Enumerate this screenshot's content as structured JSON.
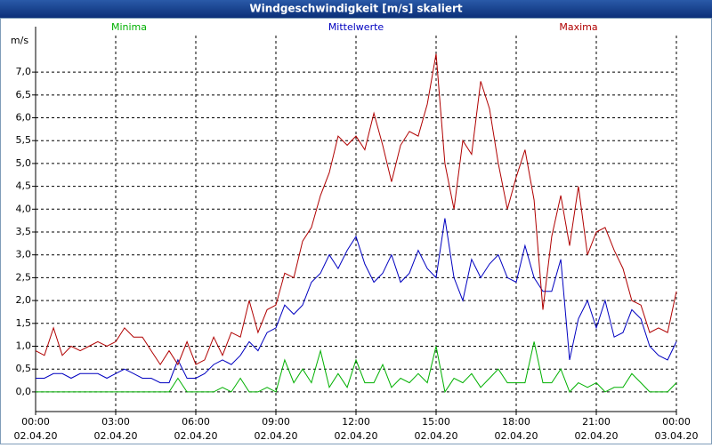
{
  "chart_data": {
    "type": "line",
    "title": "Windgeschwindigkeit [m/s] skaliert",
    "y_label": "m/s",
    "x": [
      0,
      0.33,
      0.67,
      1,
      1.33,
      1.67,
      2,
      2.33,
      2.67,
      3,
      3.33,
      3.67,
      4,
      4.33,
      4.67,
      5,
      5.33,
      5.67,
      6,
      6.33,
      6.67,
      7,
      7.33,
      7.67,
      8,
      8.33,
      8.67,
      9,
      9.33,
      9.67,
      10,
      10.33,
      10.67,
      11,
      11.33,
      11.67,
      12,
      12.33,
      12.67,
      13,
      13.33,
      13.67,
      14,
      14.33,
      14.67,
      15,
      15.33,
      15.67,
      16,
      16.33,
      16.67,
      17,
      17.33,
      17.67,
      18,
      18.33,
      18.67,
      19,
      19.33,
      19.67,
      20,
      20.33,
      20.67,
      21,
      21.33,
      21.67,
      22,
      22.33,
      22.67,
      23,
      23.33,
      23.67,
      24
    ],
    "series": [
      {
        "name": "Minima",
        "color": "#00b000",
        "values": [
          0,
          0,
          0,
          0,
          0,
          0,
          0,
          0,
          0,
          0,
          0,
          0,
          0,
          0,
          0,
          0,
          0.3,
          0,
          0,
          0,
          0,
          0.1,
          0,
          0.3,
          0,
          0,
          0.1,
          0,
          0.7,
          0.2,
          0.5,
          0.2,
          0.9,
          0.1,
          0.4,
          0.1,
          0.7,
          0.2,
          0.2,
          0.6,
          0.1,
          0.3,
          0.2,
          0.4,
          0.2,
          1.0,
          0,
          0.3,
          0.2,
          0.4,
          0.1,
          0.3,
          0.5,
          0.2,
          0.2,
          0.2,
          1.1,
          0.2,
          0.2,
          0.5,
          0,
          0.2,
          0.1,
          0.2,
          0,
          0.1,
          0.1,
          0.4,
          0.2,
          0,
          0,
          0,
          0.2
        ]
      },
      {
        "name": "Mittelwerte",
        "color": "#0000c0",
        "values": [
          0.3,
          0.3,
          0.4,
          0.4,
          0.3,
          0.4,
          0.4,
          0.4,
          0.3,
          0.4,
          0.5,
          0.4,
          0.3,
          0.3,
          0.2,
          0.2,
          0.7,
          0.3,
          0.3,
          0.4,
          0.6,
          0.7,
          0.6,
          0.8,
          1.1,
          0.9,
          1.3,
          1.4,
          1.9,
          1.7,
          1.9,
          2.4,
          2.6,
          3.0,
          2.7,
          3.1,
          3.4,
          2.8,
          2.4,
          2.6,
          3.0,
          2.4,
          2.6,
          3.1,
          2.7,
          2.5,
          3.8,
          2.5,
          2.0,
          2.9,
          2.5,
          2.8,
          3.0,
          2.5,
          2.4,
          3.2,
          2.5,
          2.2,
          2.2,
          2.9,
          0.7,
          1.6,
          2.0,
          1.4,
          2.0,
          1.2,
          1.3,
          1.8,
          1.6,
          1.0,
          0.8,
          0.7,
          1.1
        ]
      },
      {
        "name": "Maxima",
        "color": "#b00000",
        "values": [
          0.9,
          0.8,
          1.4,
          0.8,
          1.0,
          0.9,
          1.0,
          1.1,
          1.0,
          1.1,
          1.4,
          1.2,
          1.2,
          0.9,
          0.6,
          0.9,
          0.6,
          1.1,
          0.6,
          0.7,
          1.2,
          0.8,
          1.3,
          1.2,
          2.0,
          1.3,
          1.8,
          1.9,
          2.6,
          2.5,
          3.3,
          3.6,
          4.3,
          4.8,
          5.6,
          5.4,
          5.6,
          5.3,
          6.1,
          5.4,
          4.6,
          5.4,
          5.7,
          5.6,
          6.3,
          7.4,
          5.0,
          4.0,
          5.5,
          5.2,
          6.8,
          6.2,
          5.0,
          4.0,
          4.7,
          5.3,
          4.2,
          1.8,
          3.4,
          4.3,
          3.2,
          4.5,
          3.0,
          3.5,
          3.6,
          3.1,
          2.7,
          2.0,
          1.9,
          1.3,
          1.4,
          1.3,
          2.2
        ]
      }
    ],
    "xlim": [
      0,
      24
    ],
    "ylim": [
      -0.43,
      7.8
    ],
    "xticks": [
      {
        "value": 0,
        "label": "00:00",
        "date": "02.04.20"
      },
      {
        "value": 3,
        "label": "03:00",
        "date": "02.04.20"
      },
      {
        "value": 6,
        "label": "06:00",
        "date": "02.04.20"
      },
      {
        "value": 9,
        "label": "09:00",
        "date": "02.04.20"
      },
      {
        "value": 12,
        "label": "12:00",
        "date": "02.04.20"
      },
      {
        "value": 15,
        "label": "15:00",
        "date": "02.04.20"
      },
      {
        "value": 18,
        "label": "18:00",
        "date": "02.04.20"
      },
      {
        "value": 21,
        "label": "21:00",
        "date": "02.04.20"
      },
      {
        "value": 24,
        "label": "00:00",
        "date": "03.04.20"
      }
    ],
    "yticks": [
      {
        "value": 0,
        "label": "0,0"
      },
      {
        "value": 0.5,
        "label": "0,5"
      },
      {
        "value": 1,
        "label": "1,0"
      },
      {
        "value": 1.5,
        "label": "1,5"
      },
      {
        "value": 2,
        "label": "2,0"
      },
      {
        "value": 2.5,
        "label": "2,5"
      },
      {
        "value": 3,
        "label": "3,0"
      },
      {
        "value": 3.5,
        "label": "3,5"
      },
      {
        "value": 4,
        "label": "4,0"
      },
      {
        "value": 4.5,
        "label": "4,5"
      },
      {
        "value": 5,
        "label": "5,0"
      },
      {
        "value": 5.5,
        "label": "5,5"
      },
      {
        "value": 6,
        "label": "6,0"
      },
      {
        "value": 6.5,
        "label": "6,5"
      },
      {
        "value": 7,
        "label": "7,0"
      }
    ],
    "grid": true
  }
}
